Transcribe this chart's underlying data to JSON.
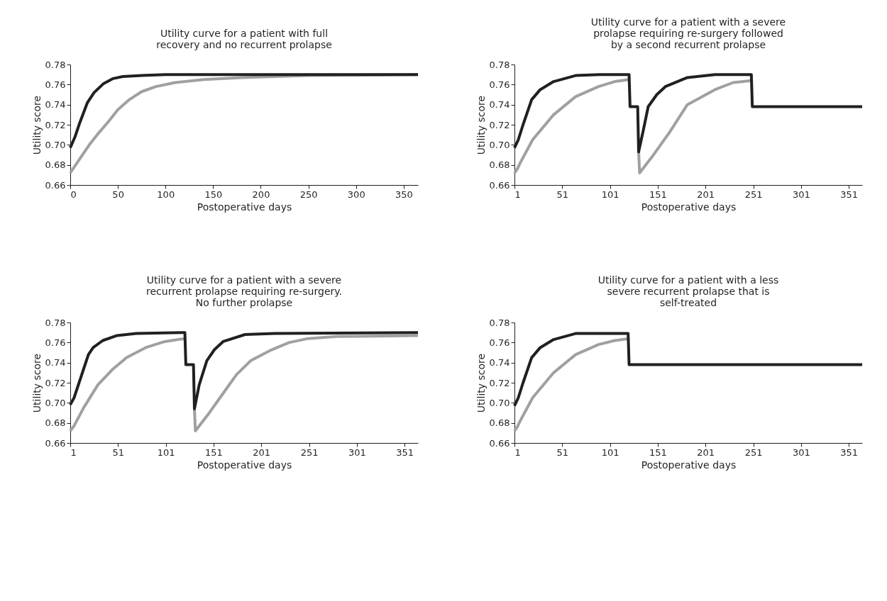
{
  "chart_data": [
    {
      "type": "line",
      "title": [
        "Utility curve for a patient with full",
        "recovery and no recurrent prolapse"
      ],
      "xlabel": "Postoperative days",
      "ylabel": "Utility score",
      "xlim": [
        0,
        365
      ],
      "xticks": [
        0,
        50,
        100,
        150,
        200,
        250,
        300,
        350
      ],
      "ylim": [
        0.66,
        0.78
      ],
      "yticks": [
        {
          "value": 0.66,
          "label": "0.66"
        },
        {
          "value": 0.68,
          "label": "0.68"
        },
        {
          "value": 0.7,
          "label": "0.70"
        },
        {
          "value": 0.72,
          "label": "0.72"
        },
        {
          "value": 0.74,
          "label": "0.74"
        },
        {
          "value": 0.76,
          "label": "0.76"
        },
        {
          "value": 0.78,
          "label": "0.78"
        }
      ],
      "grid": false,
      "legend": false,
      "series": [
        {
          "color": "#a0a0a0",
          "x": [
            0,
            10,
            20,
            30,
            40,
            50,
            62,
            75,
            90,
            110,
            140,
            180,
            250,
            365
          ],
          "values": [
            0.672,
            0.686,
            0.7,
            0.712,
            0.723,
            0.735,
            0.745,
            0.753,
            0.758,
            0.762,
            0.765,
            0.767,
            0.769,
            0.77
          ]
        },
        {
          "color": "#231f20",
          "x": [
            0,
            5,
            10,
            18,
            25,
            35,
            45,
            55,
            75,
            100,
            365
          ],
          "values": [
            0.697,
            0.708,
            0.722,
            0.742,
            0.752,
            0.761,
            0.766,
            0.768,
            0.769,
            0.77,
            0.77
          ]
        }
      ]
    },
    {
      "type": "line",
      "title": [
        "Utility curve for a patient with a severe",
        "prolapse requiring re-surgery followed",
        "by a second recurrent prolapse"
      ],
      "xlabel": "Postoperative days",
      "ylabel": "Utility score",
      "xlim": [
        1,
        365
      ],
      "xticks": [
        1,
        51,
        101,
        151,
        201,
        251,
        301,
        351
      ],
      "ylim": [
        0.66,
        0.78
      ],
      "yticks": [
        {
          "value": 0.66,
          "label": "0.66"
        },
        {
          "value": 0.68,
          "label": "0.68"
        },
        {
          "value": 0.7,
          "label": "0.70"
        },
        {
          "value": 0.72,
          "label": "0.72"
        },
        {
          "value": 0.74,
          "label": "0.74"
        },
        {
          "value": 0.76,
          "label": "0.76"
        },
        {
          "value": 0.78,
          "label": "0.78"
        }
      ],
      "grid": false,
      "legend": false,
      "series": [
        {
          "color": "#a0a0a0",
          "x": [
            1,
            4,
            7,
            20,
            42,
            65,
            89,
            106,
            121,
            126,
            131,
            132,
            145,
            163,
            182,
            211,
            230,
            249
          ],
          "values": [
            0.672,
            0.676,
            0.682,
            0.705,
            0.73,
            0.748,
            0.758,
            0.763,
            0.765,
            null,
            0.693,
            0.672,
            0.688,
            0.712,
            0.74,
            0.755,
            0.762,
            0.764
          ]
        },
        {
          "color": "#231f20",
          "x": [
            1,
            5,
            10,
            19,
            28,
            42,
            65,
            90,
            121,
            122,
            130,
            131,
            136,
            141,
            150,
            159,
            182,
            211,
            249,
            250,
            365
          ],
          "values": [
            0.697,
            0.705,
            0.72,
            0.745,
            0.755,
            0.763,
            0.769,
            0.77,
            0.77,
            0.738,
            0.738,
            0.693,
            0.715,
            0.738,
            0.75,
            0.758,
            0.767,
            0.77,
            0.77,
            0.738,
            0.738
          ]
        }
      ]
    },
    {
      "type": "line",
      "title": [
        "Utility curve for a patient with a severe",
        "recurrent prolapse requiring re-surgery.",
        "No further prolapse"
      ],
      "xlabel": "Postoperative days",
      "ylabel": "Utility score",
      "xlim": [
        1,
        365
      ],
      "xticks": [
        1,
        51,
        101,
        151,
        201,
        251,
        301,
        351
      ],
      "ylim": [
        0.66,
        0.78
      ],
      "yticks": [
        {
          "value": 0.66,
          "label": "0.66"
        },
        {
          "value": 0.68,
          "label": "0.68"
        },
        {
          "value": 0.7,
          "label": "0.70"
        },
        {
          "value": 0.72,
          "label": "0.72"
        },
        {
          "value": 0.74,
          "label": "0.74"
        },
        {
          "value": 0.76,
          "label": "0.76"
        },
        {
          "value": 0.78,
          "label": "0.78"
        }
      ],
      "grid": false,
      "legend": false,
      "series": [
        {
          "color": "#a0a0a0",
          "x": [
            1,
            5,
            15,
            30,
            45,
            60,
            80,
            100,
            121,
            126,
            131,
            132,
            145,
            160,
            175,
            190,
            210,
            230,
            250,
            280,
            365
          ],
          "values": [
            0.672,
            0.677,
            0.695,
            0.718,
            0.733,
            0.745,
            0.755,
            0.761,
            0.764,
            null,
            0.694,
            0.672,
            0.688,
            0.708,
            0.728,
            0.742,
            0.752,
            0.76,
            0.764,
            0.766,
            0.767
          ]
        },
        {
          "color": "#231f20",
          "x": [
            1,
            5,
            12,
            20,
            25,
            35,
            50,
            70,
            121,
            122,
            130,
            131,
            136,
            144,
            152,
            161,
            184,
            215,
            365
          ],
          "values": [
            0.698,
            0.705,
            0.725,
            0.748,
            0.755,
            0.762,
            0.767,
            0.769,
            0.77,
            0.738,
            0.738,
            0.694,
            0.718,
            0.742,
            0.753,
            0.761,
            0.768,
            0.769,
            0.77
          ]
        }
      ]
    },
    {
      "type": "line",
      "title": [
        "Utility curve for a patient with a less",
        "severe recurrent prolapse that is",
        "self-treated"
      ],
      "xlabel": "Postoperative days",
      "ylabel": "Utility score",
      "xlim": [
        1,
        365
      ],
      "xticks": [
        1,
        51,
        101,
        151,
        201,
        251,
        301,
        351
      ],
      "ylim": [
        0.66,
        0.78
      ],
      "yticks": [
        {
          "value": 0.66,
          "label": "0.66"
        },
        {
          "value": 0.68,
          "label": "0.68"
        },
        {
          "value": 0.7,
          "label": "0.70"
        },
        {
          "value": 0.72,
          "label": "0.72"
        },
        {
          "value": 0.74,
          "label": "0.74"
        },
        {
          "value": 0.76,
          "label": "0.76"
        },
        {
          "value": 0.78,
          "label": "0.78"
        }
      ],
      "grid": false,
      "legend": false,
      "series": [
        {
          "color": "#a0a0a0",
          "x": [
            1,
            4,
            7,
            20,
            42,
            65,
            89,
            106,
            121
          ],
          "values": [
            0.672,
            0.676,
            0.682,
            0.705,
            0.73,
            0.748,
            0.758,
            0.762,
            0.764
          ]
        },
        {
          "color": "#231f20",
          "x": [
            1,
            5,
            10,
            19,
            28,
            42,
            65,
            90,
            120,
            121,
            365
          ],
          "values": [
            0.697,
            0.705,
            0.72,
            0.745,
            0.755,
            0.763,
            0.769,
            0.769,
            0.769,
            0.738,
            0.738
          ]
        }
      ]
    }
  ]
}
